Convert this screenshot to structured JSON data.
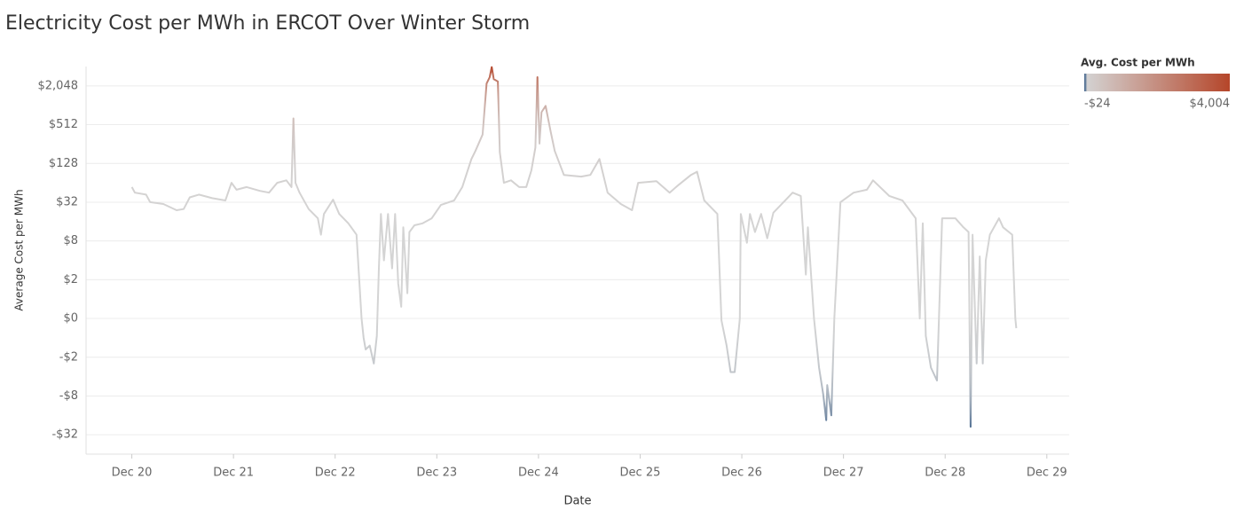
{
  "chart_data": {
    "type": "line",
    "title": "Electricity Cost per MWh in ERCOT Over Winter Storm",
    "xlabel": "Date",
    "ylabel": "Average Cost per MWh",
    "yscale": "symlog",
    "symlog_base": 4,
    "symlog_linthresh": 2,
    "xlim": [
      19.55,
      29.22
    ],
    "ylim": [
      -64,
      4096
    ],
    "xticks": [
      {
        "value": 20,
        "label": "Dec 20"
      },
      {
        "value": 21,
        "label": "Dec 21"
      },
      {
        "value": 22,
        "label": "Dec 22"
      },
      {
        "value": 23,
        "label": "Dec 23"
      },
      {
        "value": 24,
        "label": "Dec 24"
      },
      {
        "value": 25,
        "label": "Dec 25"
      },
      {
        "value": 26,
        "label": "Dec 26"
      },
      {
        "value": 27,
        "label": "Dec 27"
      },
      {
        "value": 28,
        "label": "Dec 28"
      },
      {
        "value": 29,
        "label": "Dec 29"
      }
    ],
    "yticks": [
      {
        "value": 2048,
        "label": "$2,048"
      },
      {
        "value": 512,
        "label": "$512"
      },
      {
        "value": 128,
        "label": "$128"
      },
      {
        "value": 32,
        "label": "$32"
      },
      {
        "value": 8,
        "label": "$8"
      },
      {
        "value": 2,
        "label": "$2"
      },
      {
        "value": 0,
        "label": "$0"
      },
      {
        "value": -2,
        "label": "-$2"
      },
      {
        "value": -8,
        "label": "-$8"
      },
      {
        "value": -32,
        "label": "-$32"
      }
    ],
    "grid": true,
    "color_legend": {
      "title": "Avg. Cost per MWh",
      "min": {
        "value": -24,
        "label": "-$24"
      },
      "max": {
        "value": 4004,
        "label": "$4,004"
      },
      "low_color": "#4e6d91",
      "mid_color": "#d4d4d4",
      "high_color": "#b5462a"
    },
    "x": [
      20.0,
      20.03,
      20.14,
      20.18,
      20.31,
      20.44,
      20.51,
      20.57,
      20.66,
      20.79,
      20.92,
      20.98,
      21.03,
      21.13,
      21.26,
      21.35,
      21.43,
      21.52,
      21.57,
      21.59,
      21.61,
      21.65,
      21.74,
      21.83,
      21.86,
      21.89,
      21.98,
      22.04,
      22.13,
      22.21,
      22.26,
      22.28,
      22.3,
      22.34,
      22.38,
      22.41,
      22.43,
      22.45,
      22.48,
      22.52,
      22.56,
      22.59,
      22.62,
      22.65,
      22.67,
      22.71,
      22.73,
      22.78,
      22.86,
      22.95,
      23.04,
      23.17,
      23.25,
      23.34,
      23.38,
      23.45,
      23.49,
      23.52,
      23.54,
      23.56,
      23.6,
      23.62,
      23.66,
      23.73,
      23.81,
      23.88,
      23.93,
      23.97,
      23.99,
      24.01,
      24.03,
      24.07,
      24.12,
      24.16,
      24.25,
      24.42,
      24.51,
      24.6,
      24.68,
      24.81,
      24.92,
      24.98,
      25.16,
      25.29,
      25.37,
      25.5,
      25.56,
      25.63,
      25.76,
      25.8,
      25.85,
      25.89,
      25.93,
      25.98,
      25.99,
      26.05,
      26.08,
      26.13,
      26.19,
      26.25,
      26.31,
      26.5,
      26.58,
      26.63,
      26.65,
      26.71,
      26.76,
      26.8,
      26.83,
      26.84,
      26.88,
      26.91,
      26.97,
      27.1,
      27.23,
      27.29,
      27.45,
      27.58,
      27.71,
      27.75,
      27.78,
      27.81,
      27.86,
      27.92,
      27.97,
      28.1,
      28.18,
      28.23,
      28.25,
      28.27,
      28.31,
      28.34,
      28.37,
      28.4,
      28.44,
      28.53,
      28.57,
      28.66,
      28.69,
      28.7
    ],
    "series": [
      {
        "name": "Avg. Cost per MWh",
        "values": [
          55,
          45,
          42,
          32,
          30,
          24,
          25,
          38,
          42,
          37,
          34,
          64,
          50,
          55,
          48,
          45,
          64,
          70,
          55,
          640,
          64,
          45,
          25,
          18,
          10,
          21,
          35,
          21,
          15,
          10,
          0,
          -1,
          -1.6,
          -1.4,
          -2.5,
          -0.9,
          3,
          21,
          4,
          21,
          3,
          21,
          1.8,
          0.6,
          13,
          1.3,
          11,
          14,
          15,
          18,
          29,
          34,
          55,
          150,
          200,
          360,
          2230,
          2800,
          4000,
          2600,
          2400,
          190,
          64,
          70,
          55,
          55,
          100,
          226,
          2800,
          260,
          800,
          1000,
          400,
          200,
          85,
          80,
          85,
          150,
          45,
          30,
          24,
          64,
          68,
          45,
          58,
          85,
          95,
          34,
          21,
          -0.1,
          -1.4,
          -3.4,
          -3.4,
          0,
          21,
          7.5,
          21,
          11,
          21,
          8.8,
          22,
          45,
          40,
          2.4,
          13,
          0,
          -2.9,
          -7.4,
          -19,
          -5.4,
          -16,
          0,
          32,
          45,
          50,
          70,
          40,
          34,
          18,
          0,
          15,
          -0.9,
          -2.9,
          -4.6,
          18,
          18,
          13,
          11,
          -24,
          10,
          -2.5,
          4.6,
          -2.5,
          4,
          10,
          18,
          13,
          10,
          0,
          -0.5
        ]
      }
    ]
  }
}
